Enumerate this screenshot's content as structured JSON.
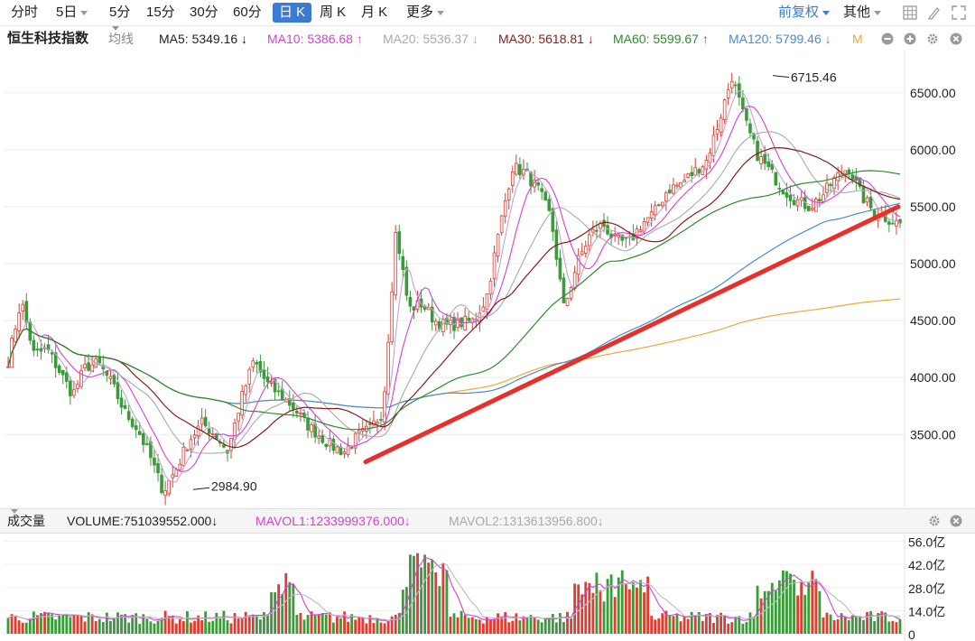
{
  "toolbar": {
    "periods": [
      "分时",
      "5日",
      "5分",
      "15分",
      "30分",
      "60分",
      "日 K",
      "周 K",
      "月 K",
      "更多"
    ],
    "active_period": "日 K",
    "adjust": "前复权",
    "other": "其他"
  },
  "ma_row": {
    "index_name": "恒生科技指数",
    "avg_line": "均线",
    "ma5": "MA5: 5349.16 ↓",
    "ma10": "MA10: 5386.68 ↑",
    "ma20": "MA20: 5536.37 ↓",
    "ma30": "MA30: 5618.81 ↓",
    "ma60": "MA60: 5599.67 ↑",
    "ma120": "MA120: 5799.46 ↓",
    "m_badge": "M"
  },
  "colors": {
    "up": "#e03c31",
    "down": "#3a9b3a",
    "ma5": "#c8a0d8",
    "ma10": "#d63fd6",
    "ma20": "#aaaaaa",
    "ma30": "#8b1a1a",
    "ma60": "#2e8b2e",
    "ma120": "#4a8ad4",
    "ma250": "#f0a838",
    "trendline": "#e8302a"
  },
  "chart_data": {
    "type": "candlestick",
    "price_axis": {
      "ylim": [
        2900,
        6800
      ],
      "ticks": [
        "3500.00",
        "4000.00",
        "4500.00",
        "5000.00",
        "5500.00",
        "6000.00",
        "6500.00"
      ]
    },
    "annotations": {
      "high": "6715.46",
      "low": "2984.90"
    },
    "trendline": {
      "from_price": 3260,
      "to_price": 5500
    },
    "anchor_prices": [
      4150,
      4680,
      4200,
      4250,
      4050,
      3850,
      4100,
      4120,
      3950,
      3700,
      3550,
      3300,
      3000,
      3200,
      3450,
      3600,
      3500,
      3350,
      3800,
      4150,
      3950,
      3850,
      3750,
      3600,
      3500,
      3400,
      3350,
      3480,
      3550,
      3700,
      5300,
      4600,
      4650,
      4500,
      4450,
      4480,
      4500,
      4700,
      5300,
      5850,
      5800,
      5650,
      5400,
      4600,
      5000,
      5250,
      5350,
      5200,
      5180,
      5350,
      5450,
      5650,
      5700,
      5800,
      5900,
      6250,
      6650,
      6250,
      5950,
      5800,
      5650,
      5550,
      5500,
      5600,
      5750,
      5850,
      5600,
      5450,
      5400,
      5350
    ],
    "volume_axis": {
      "ticks": [
        "0",
        "14.0亿",
        "28.0亿",
        "42.0亿",
        "56.0亿"
      ],
      "max": 58
    }
  },
  "volume_header": {
    "label": "成交量",
    "volume": "VOLUME:751039552.000↓",
    "mavol1": "MAVOL1:1233999376.000↓",
    "mavol2": "MAVOL2:1313613956.800↓"
  }
}
